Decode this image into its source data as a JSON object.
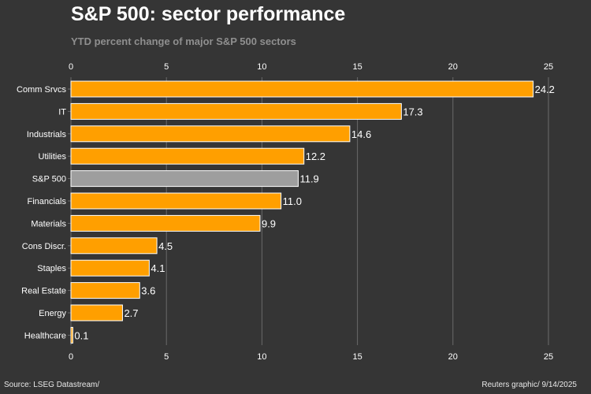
{
  "header": {
    "title": "S&P 500: sector performance",
    "subtitle": "YTD percent change of major S&P 500 sectors"
  },
  "footer": {
    "source": "Source: LSEG Datastream/",
    "credit": "Reuters graphic/ 9/14/2025"
  },
  "colors": {
    "background": "#353535",
    "bar": "#ff9f00",
    "highlight_bar": "#9e9e9e",
    "bar_edge": "#ffffff",
    "grid": "#6a6a6a",
    "text": "#ffffff"
  },
  "chart_data": {
    "type": "bar",
    "orientation": "horizontal",
    "title": "S&P 500: sector performance",
    "subtitle": "YTD percent change of major S&P 500 sectors",
    "xlabel": "",
    "ylabel": "",
    "xlim": [
      0,
      25
    ],
    "xticks": [
      0,
      5,
      10,
      15,
      20,
      25
    ],
    "grid": true,
    "highlight": "S&P 500",
    "categories": [
      "Comm Srvcs",
      "IT",
      "Industrials",
      "Utilities",
      "S&P 500",
      "Financials",
      "Materials",
      "Cons Discr.",
      "Staples",
      "Real Estate",
      "Energy",
      "Healthcare"
    ],
    "values": [
      24.2,
      17.3,
      14.6,
      12.2,
      11.9,
      11.0,
      9.9,
      4.5,
      4.1,
      3.6,
      2.7,
      0.1
    ],
    "value_labels": [
      "24.2",
      "17.3",
      "14.6",
      "12.2",
      "11.9",
      "11.0",
      "9.9",
      "4.5",
      "4.1",
      "3.6",
      "2.7",
      "0.1"
    ]
  }
}
